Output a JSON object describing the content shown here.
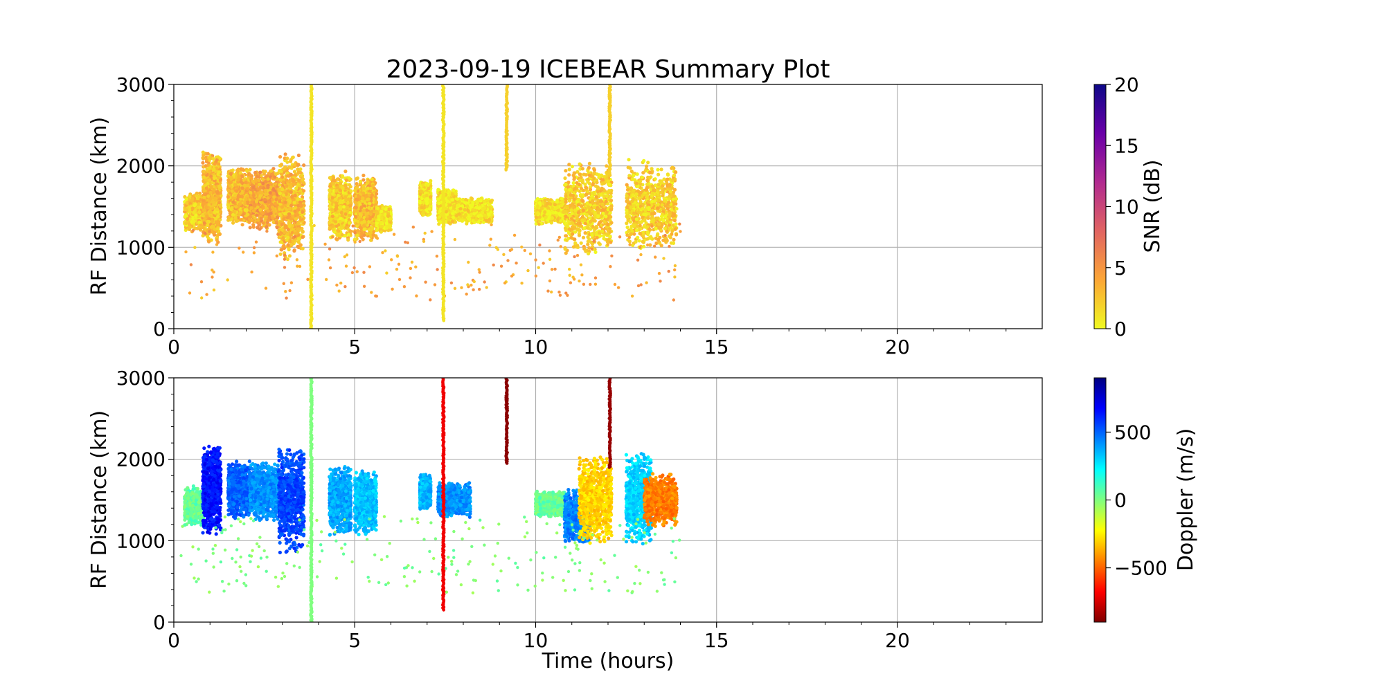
{
  "chart_data": [
    {
      "type": "scatter",
      "title": "2023-09-19 ICEBEAR Summary Plot",
      "xlabel": "",
      "ylabel": "RF Distance (km)",
      "xlim": [
        0,
        24
      ],
      "ylim": [
        0,
        3000
      ],
      "xticks": [
        "0",
        "5",
        "10",
        "15",
        "20"
      ],
      "yticks": [
        "0",
        "1000",
        "2000",
        "3000"
      ],
      "grid": true,
      "colorbar": {
        "label": "SNR (dB)",
        "range": [
          0,
          20
        ],
        "ticks": [
          "0",
          "5",
          "10",
          "15",
          "20"
        ],
        "colormap": "plasma_r",
        "colors": [
          "#f0f921",
          "#fca636",
          "#e16462",
          "#b12a90",
          "#6a00a8",
          "#0d0887"
        ]
      },
      "clusters": [
        {
          "x": [
            0.3,
            1.2
          ],
          "y": [
            1200,
            1650
          ],
          "value": 2
        },
        {
          "x": [
            0.8,
            1.3
          ],
          "y": [
            1100,
            2150
          ],
          "value": 3
        },
        {
          "x": [
            1.5,
            2.1
          ],
          "y": [
            1300,
            1950
          ],
          "value": 3
        },
        {
          "x": [
            2.1,
            2.9
          ],
          "y": [
            1250,
            1950
          ],
          "value": 4
        },
        {
          "x": [
            2.9,
            3.6
          ],
          "y": [
            900,
            2100
          ],
          "value": 3
        },
        {
          "x": [
            4.3,
            4.9
          ],
          "y": [
            1100,
            1900
          ],
          "value": 2
        },
        {
          "x": [
            5.0,
            5.6
          ],
          "y": [
            1100,
            1850
          ],
          "value": 3
        },
        {
          "x": [
            5.6,
            6.0
          ],
          "y": [
            1200,
            1500
          ],
          "value": 1
        },
        {
          "x": [
            6.8,
            7.1
          ],
          "y": [
            1400,
            1800
          ],
          "value": 1
        },
        {
          "x": [
            7.3,
            7.8
          ],
          "y": [
            1300,
            1700
          ],
          "value": 1
        },
        {
          "x": [
            7.8,
            8.8
          ],
          "y": [
            1300,
            1600
          ],
          "value": 1
        },
        {
          "x": [
            10.0,
            10.8
          ],
          "y": [
            1300,
            1600
          ],
          "value": 1
        },
        {
          "x": [
            10.8,
            12.1
          ],
          "y": [
            950,
            2000
          ],
          "value": 2
        },
        {
          "x": [
            12.5,
            13.9
          ],
          "y": [
            1000,
            2050
          ],
          "value": 2
        },
        {
          "x": [
            0.2,
            14.0
          ],
          "y": [
            350,
            1300
          ],
          "value": 4,
          "sparse": true
        }
      ],
      "streaks": [
        {
          "x": 3.8,
          "y": [
            0,
            3000
          ],
          "value": 1
        },
        {
          "x": 7.45,
          "y": [
            100,
            3000
          ],
          "value": 1
        },
        {
          "x": 9.2,
          "y": [
            1950,
            3000
          ],
          "value": 2
        },
        {
          "x": 12.05,
          "y": [
            1900,
            3000
          ],
          "value": 2
        }
      ]
    },
    {
      "type": "scatter",
      "title": "",
      "xlabel": "Time (hours)",
      "ylabel": "RF Distance (km)",
      "xlim": [
        0,
        24
      ],
      "ylim": [
        0,
        3000
      ],
      "xticks": [
        "0",
        "5",
        "10",
        "15",
        "20"
      ],
      "yticks": [
        "0",
        "1000",
        "2000",
        "3000"
      ],
      "grid": true,
      "colorbar": {
        "label": "Doppler (m/s)",
        "range": [
          -900,
          900
        ],
        "ticks": [
          "500",
          "0",
          "−500"
        ],
        "tick_values": [
          500,
          0,
          -500
        ],
        "colormap": "jet_r",
        "colors": [
          "#7f0000",
          "#ff0000",
          "#ff7f00",
          "#ffff00",
          "#7fff7f",
          "#00ffff",
          "#007fff",
          "#0000ff",
          "#00007f"
        ]
      },
      "clusters": [
        {
          "x": [
            0.3,
            0.9
          ],
          "y": [
            1200,
            1650
          ],
          "value": 50
        },
        {
          "x": [
            0.8,
            1.3
          ],
          "y": [
            1100,
            2150
          ],
          "value": 650
        },
        {
          "x": [
            1.5,
            2.1
          ],
          "y": [
            1300,
            1950
          ],
          "value": 500
        },
        {
          "x": [
            2.1,
            2.9
          ],
          "y": [
            1250,
            1950
          ],
          "value": 420
        },
        {
          "x": [
            2.9,
            3.6
          ],
          "y": [
            900,
            2100
          ],
          "value": 550
        },
        {
          "x": [
            4.3,
            4.9
          ],
          "y": [
            1100,
            1900
          ],
          "value": 380
        },
        {
          "x": [
            5.0,
            5.6
          ],
          "y": [
            1100,
            1850
          ],
          "value": 330
        },
        {
          "x": [
            6.8,
            7.1
          ],
          "y": [
            1400,
            1800
          ],
          "value": 350
        },
        {
          "x": [
            7.3,
            8.2
          ],
          "y": [
            1300,
            1700
          ],
          "value": 420
        },
        {
          "x": [
            10.0,
            10.8
          ],
          "y": [
            1300,
            1600
          ],
          "value": 40
        },
        {
          "x": [
            10.8,
            11.5
          ],
          "y": [
            1000,
            1600
          ],
          "value": 450
        },
        {
          "x": [
            11.2,
            12.1
          ],
          "y": [
            1000,
            2000
          ],
          "value": -300
        },
        {
          "x": [
            12.5,
            13.2
          ],
          "y": [
            1000,
            2050
          ],
          "value": 300
        },
        {
          "x": [
            13.0,
            13.9
          ],
          "y": [
            1200,
            1800
          ],
          "value": -450
        },
        {
          "x": [
            0.2,
            14.0
          ],
          "y": [
            350,
            1300
          ],
          "value": 0,
          "sparse": true
        }
      ],
      "streaks": [
        {
          "x": 3.8,
          "y": [
            0,
            3000
          ],
          "value": 0
        },
        {
          "x": 7.45,
          "y": [
            150,
            3000
          ],
          "value": -700
        },
        {
          "x": 9.2,
          "y": [
            1950,
            3000
          ],
          "value": -880
        },
        {
          "x": 12.05,
          "y": [
            1900,
            3000
          ],
          "value": -860
        }
      ]
    }
  ]
}
